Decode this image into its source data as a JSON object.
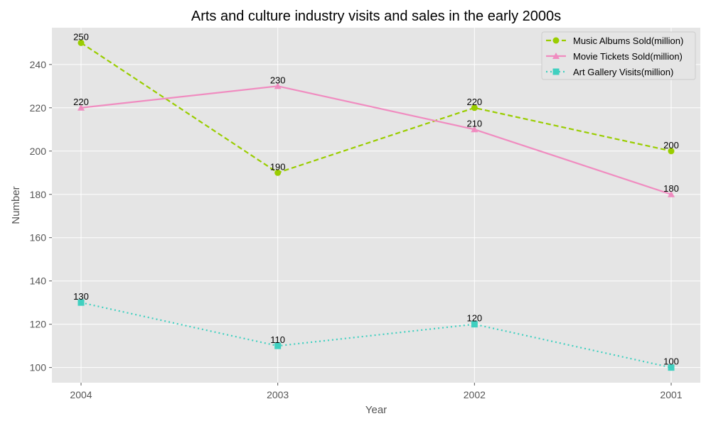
{
  "chart_data": {
    "type": "line",
    "title": "Arts and culture industry visits and sales in the early 2000s",
    "xlabel": "Year",
    "ylabel": "Number",
    "categories": [
      "2004",
      "2003",
      "2002",
      "2001"
    ],
    "ylim": [
      93,
      257
    ],
    "yticks": [
      100,
      120,
      140,
      160,
      180,
      200,
      220,
      240
    ],
    "grid": true,
    "legend_position": "top-right",
    "series": [
      {
        "name": "Music Albums Sold(million)",
        "values": [
          250,
          190,
          220,
          200
        ],
        "color": "#9acd00",
        "dash": "dashed",
        "marker": "circle"
      },
      {
        "name": "Movie Tickets Sold(million)",
        "values": [
          220,
          230,
          210,
          180
        ],
        "color": "#f08cc0",
        "dash": "solid",
        "marker": "triangle"
      },
      {
        "name": "Art Gallery Visits(million)",
        "values": [
          130,
          110,
          120,
          100
        ],
        "color": "#40d0c0",
        "dash": "dotted",
        "marker": "square"
      }
    ]
  }
}
